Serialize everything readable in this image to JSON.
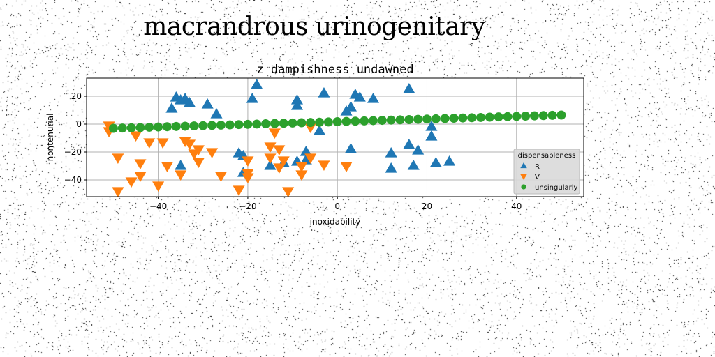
{
  "page": {
    "title": "macrandrous urinogenitary"
  },
  "chart_data": {
    "type": "scatter",
    "title": "z dampishness undawned",
    "xlabel": "inoxidability",
    "ylabel": "nontenurial",
    "xlim": [
      -56,
      55
    ],
    "ylim": [
      -52,
      33
    ],
    "xticks": [
      -40,
      -20,
      0,
      20,
      40
    ],
    "yticks": [
      -40,
      -20,
      0,
      20
    ],
    "grid": true,
    "legend": {
      "title": "dispensableness",
      "placement": "lower-right"
    },
    "series": [
      {
        "name": "R",
        "marker": "triangle-up",
        "color": "#1f77b4",
        "points": [
          [
            -37,
            11
          ],
          [
            -36,
            19
          ],
          [
            -35,
            17
          ],
          [
            -34,
            18
          ],
          [
            -33,
            15
          ],
          [
            -29,
            14
          ],
          [
            -27,
            7
          ],
          [
            -35,
            -30
          ],
          [
            -22,
            -21
          ],
          [
            -21,
            -23
          ],
          [
            -19,
            18
          ],
          [
            -18,
            28
          ],
          [
            -21,
            -35
          ],
          [
            -15,
            -30
          ],
          [
            -12,
            -28
          ],
          [
            -9,
            17
          ],
          [
            -9,
            13
          ],
          [
            -9,
            -27
          ],
          [
            -7,
            -20
          ],
          [
            -7,
            -26
          ],
          [
            -4,
            -5
          ],
          [
            -3,
            22
          ],
          [
            2,
            9
          ],
          [
            3,
            12
          ],
          [
            4,
            21
          ],
          [
            5,
            19
          ],
          [
            8,
            18
          ],
          [
            3,
            -18
          ],
          [
            12,
            -21
          ],
          [
            12,
            -32
          ],
          [
            16,
            25
          ],
          [
            16,
            -15
          ],
          [
            17,
            -30
          ],
          [
            18,
            -19
          ],
          [
            21,
            -2
          ],
          [
            21,
            -9
          ],
          [
            22,
            -28
          ],
          [
            25,
            -27
          ]
        ]
      },
      {
        "name": "V",
        "marker": "triangle-down",
        "color": "#ff7f0e",
        "points": [
          [
            -51,
            -1
          ],
          [
            -51,
            -5
          ],
          [
            -49,
            -24
          ],
          [
            -49,
            -48
          ],
          [
            -45,
            -8
          ],
          [
            -46,
            -41
          ],
          [
            -44,
            -28
          ],
          [
            -44,
            -37
          ],
          [
            -42,
            -13
          ],
          [
            -40,
            -44
          ],
          [
            -39,
            -13
          ],
          [
            -38,
            -30
          ],
          [
            -35,
            -36
          ],
          [
            -34,
            -12
          ],
          [
            -33,
            -14
          ],
          [
            -32,
            -21
          ],
          [
            -31,
            -18
          ],
          [
            -31,
            -27
          ],
          [
            -28,
            -20
          ],
          [
            -26,
            -37
          ],
          [
            -22,
            -47
          ],
          [
            -20,
            -35
          ],
          [
            -20,
            -38
          ],
          [
            -20,
            -26
          ],
          [
            -15,
            -16
          ],
          [
            -15,
            -24
          ],
          [
            -14,
            -6
          ],
          [
            -13,
            -18
          ],
          [
            -13,
            -31
          ],
          [
            -12,
            -26
          ],
          [
            -11,
            -48
          ],
          [
            -8,
            -30
          ],
          [
            -8,
            -36
          ],
          [
            -6,
            -24
          ],
          [
            -6,
            -2
          ],
          [
            -3,
            -29
          ],
          [
            2,
            -30
          ]
        ]
      },
      {
        "name": "unsingularly",
        "marker": "circle",
        "color": "#2ca02c",
        "linear": {
          "x_start": -50,
          "x_end": 50,
          "count": 51,
          "y_start": -3,
          "y_end": 6.5
        }
      }
    ]
  }
}
